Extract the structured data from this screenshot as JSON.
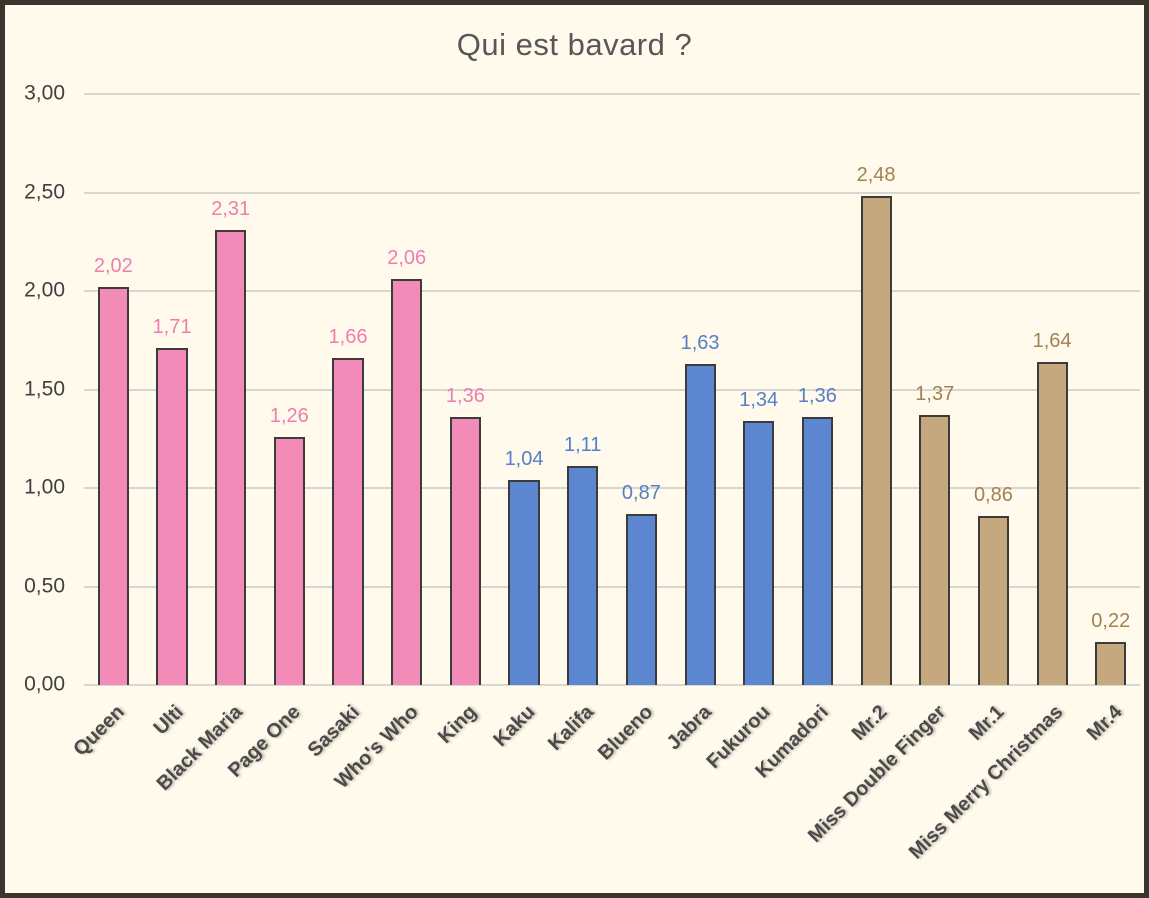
{
  "chart_data": {
    "type": "bar",
    "title": "Qui est bavard ?",
    "xlabel": "",
    "ylabel": "",
    "ylim": [
      0,
      3
    ],
    "grid": true,
    "legend": "none",
    "decimal_separator": ",",
    "y_ticks": [
      {
        "value": 0,
        "label": "0,00"
      },
      {
        "value": 0.5,
        "label": "0,50"
      },
      {
        "value": 1,
        "label": "1,00"
      },
      {
        "value": 1.5,
        "label": "1,50"
      },
      {
        "value": 2,
        "label": "2,00"
      },
      {
        "value": 2.5,
        "label": "2,50"
      },
      {
        "value": 3,
        "label": "3,00"
      }
    ],
    "groups": {
      "pink": {
        "fill": "#F28BB8",
        "value_label_color": "#EE7EAE"
      },
      "blue": {
        "fill": "#5C87D0",
        "value_label_color": "#5580C8"
      },
      "tan": {
        "fill": "#C6A87F",
        "value_label_color": "#A08353"
      }
    },
    "bars": [
      {
        "category": "Queen",
        "value": 2.02,
        "value_label": "2,02",
        "group": "pink"
      },
      {
        "category": "Ulti",
        "value": 1.71,
        "value_label": "1,71",
        "group": "pink"
      },
      {
        "category": "Black Maria",
        "value": 2.31,
        "value_label": "2,31",
        "group": "pink"
      },
      {
        "category": "Page One",
        "value": 1.26,
        "value_label": "1,26",
        "group": "pink"
      },
      {
        "category": "Sasaki",
        "value": 1.66,
        "value_label": "1,66",
        "group": "pink"
      },
      {
        "category": "Who's Who",
        "value": 2.06,
        "value_label": "2,06",
        "group": "pink"
      },
      {
        "category": "King",
        "value": 1.36,
        "value_label": "1,36",
        "group": "pink"
      },
      {
        "category": "Kaku",
        "value": 1.04,
        "value_label": "1,04",
        "group": "blue"
      },
      {
        "category": "Kalifa",
        "value": 1.11,
        "value_label": "1,11",
        "group": "blue"
      },
      {
        "category": "Blueno",
        "value": 0.87,
        "value_label": "0,87",
        "group": "blue"
      },
      {
        "category": "Jabra",
        "value": 1.63,
        "value_label": "1,63",
        "group": "blue"
      },
      {
        "category": "Fukurou",
        "value": 1.34,
        "value_label": "1,34",
        "group": "blue"
      },
      {
        "category": "Kumadori",
        "value": 1.36,
        "value_label": "1,36",
        "group": "blue"
      },
      {
        "category": "Mr.2",
        "value": 2.48,
        "value_label": "2,48",
        "group": "tan"
      },
      {
        "category": "Miss Double Finger",
        "value": 1.37,
        "value_label": "1,37",
        "group": "tan"
      },
      {
        "category": "Mr.1",
        "value": 0.86,
        "value_label": "0,86",
        "group": "tan"
      },
      {
        "category": "Miss Merry Christmas",
        "value": 1.64,
        "value_label": "1,64",
        "group": "tan"
      },
      {
        "category": "Mr.4",
        "value": 0.22,
        "value_label": "0,22",
        "group": "tan"
      }
    ],
    "colors": {
      "background": "#FFFAEC",
      "frame_border": "#3A352E",
      "gridline": "#D8D6D0",
      "bar_outline": "#3B3B3B",
      "title": "#575757",
      "axis_text": "#3F3F3F",
      "category_text": "#4A4A4A"
    }
  }
}
